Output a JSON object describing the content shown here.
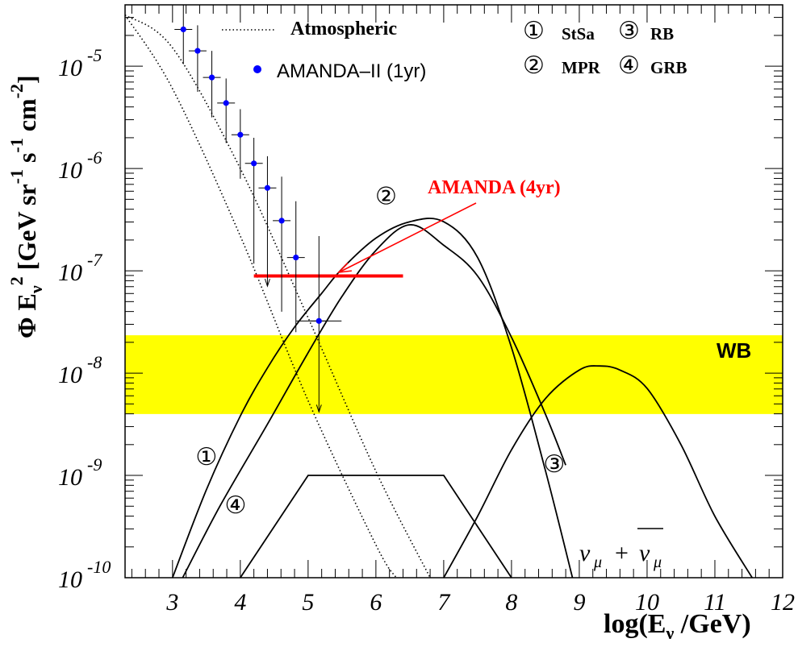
{
  "chart_data": {
    "type": "line",
    "xlabel": "log(E_ν /GeV)",
    "ylabel": "Φ E_ν^2 [GeV sr^-1 s^-1 cm^-2]",
    "xlim": [
      2.3,
      12
    ],
    "ylim_log10": [
      -10,
      -4.4
    ],
    "log_y": true,
    "x_ticks": [
      3,
      4,
      5,
      6,
      7,
      8,
      9,
      10,
      11,
      12
    ],
    "y_ticks_log10": [
      -5,
      -6,
      -7,
      -8,
      -9,
      -10
    ],
    "grid": false,
    "legend": {
      "atmospheric": "Atmospheric",
      "amanda_ii": "AMANDA–II (1yr)",
      "m1": "StSa",
      "m3": "RB",
      "m2": "MPR",
      "m4": "GRB"
    },
    "circle_glyphs": [
      "①",
      "②",
      "③",
      "④"
    ],
    "annotations": {
      "amanda4": "AMANDA (4yr)",
      "wb": "WB",
      "nu": "ν",
      "nu_sub": "μ",
      "plus": "+"
    },
    "wb_band_log10": [
      -8.4,
      -7.63
    ],
    "amanda4_limit": {
      "x": [
        4.2,
        6.4
      ],
      "log10y": -7.05
    },
    "atmospheric_band": {
      "lower": {
        "x": [
          2.3,
          3.0,
          4.0,
          5.0,
          6.0,
          6.3
        ],
        "log10y": [
          -4.5,
          -5.22,
          -6.66,
          -8.27,
          -9.68,
          -10.0
        ]
      },
      "upper": {
        "x": [
          2.3,
          3.0,
          4.0,
          5.0,
          6.0,
          6.8
        ],
        "log10y": [
          -4.5,
          -4.82,
          -6.0,
          -7.46,
          -8.96,
          -10.0
        ]
      }
    },
    "amanda_ii_points": [
      {
        "x": 3.16,
        "log10y": -4.64,
        "err_up": -4.4,
        "err_lo": -4.98
      },
      {
        "x": 3.37,
        "log10y": -4.85,
        "err_up": -4.6,
        "err_lo": -5.25
      },
      {
        "x": 3.58,
        "log10y": -5.11,
        "err_up": -4.85,
        "err_lo": -5.5
      },
      {
        "x": 3.79,
        "log10y": -5.36,
        "err_up": -5.12,
        "err_lo": -5.75
      },
      {
        "x": 4.0,
        "log10y": -5.67,
        "err_up": -5.42,
        "err_lo": -6.1
      },
      {
        "x": 4.2,
        "log10y": -5.95,
        "err_up": -5.7,
        "err_lo": -6.93
      },
      {
        "x": 4.4,
        "log10y": -6.19,
        "err_up": -5.88,
        "err_lo": -7.15,
        "limit": true
      },
      {
        "x": 4.61,
        "log10y": -6.51,
        "err_up": -6.08,
        "err_lo": -7.4
      },
      {
        "x": 4.82,
        "log10y": -6.87,
        "err_up": -6.32,
        "err_lo": -7.6
      },
      {
        "x": 5.16,
        "log10y": -7.49,
        "err_up": -6.66,
        "err_lo": -8.38,
        "limit": true
      }
    ],
    "series": [
      {
        "label": "①",
        "x": [
          3.0,
          3.5,
          4.0,
          4.4,
          4.8,
          5.2,
          5.5,
          6.0,
          6.5,
          7.0,
          7.5,
          8.0,
          8.5,
          8.9
        ],
        "log10y": [
          -10.0,
          -9.14,
          -8.42,
          -7.95,
          -7.55,
          -7.22,
          -6.98,
          -6.68,
          -6.52,
          -6.52,
          -6.87,
          -7.75,
          -8.95,
          -10.0
        ]
      },
      {
        "label": "②",
        "x": [
          3.15,
          3.7,
          4.4,
          5.0,
          5.5,
          6.0,
          6.5,
          7.0,
          7.5,
          8.0,
          8.5,
          8.8
        ],
        "log10y": [
          -10.0,
          -9.3,
          -8.5,
          -7.8,
          -7.25,
          -6.8,
          -6.55,
          -6.75,
          -7.05,
          -7.65,
          -8.4,
          -8.9
        ]
      },
      {
        "label": "③",
        "x": [
          7.0,
          7.5,
          8.0,
          8.5,
          9.0,
          9.3,
          9.6,
          10.0,
          10.5,
          11.0,
          11.55
        ],
        "log10y": [
          -10.0,
          -9.4,
          -8.75,
          -8.25,
          -7.97,
          -7.93,
          -7.97,
          -8.15,
          -8.7,
          -9.4,
          -10.0
        ]
      },
      {
        "label": "④",
        "x": [
          4.0,
          5.0,
          7.0,
          8.0
        ],
        "log10y": [
          -10.0,
          -9.0,
          -9.0,
          -10.0
        ]
      }
    ],
    "curve_circle_labels": [
      {
        "glyph": "②",
        "x": 6.15,
        "log10y": -6.27
      },
      {
        "glyph": "③",
        "x": 8.63,
        "log10y": -8.89
      },
      {
        "glyph": "①",
        "x": 3.5,
        "log10y": -8.82
      },
      {
        "glyph": "④",
        "x": 3.93,
        "log10y": -9.29
      }
    ],
    "colors": {
      "amanda4": "#ff0000",
      "points": "#0000ff",
      "wb_band": "#ffff00",
      "axis": "#000000"
    }
  }
}
